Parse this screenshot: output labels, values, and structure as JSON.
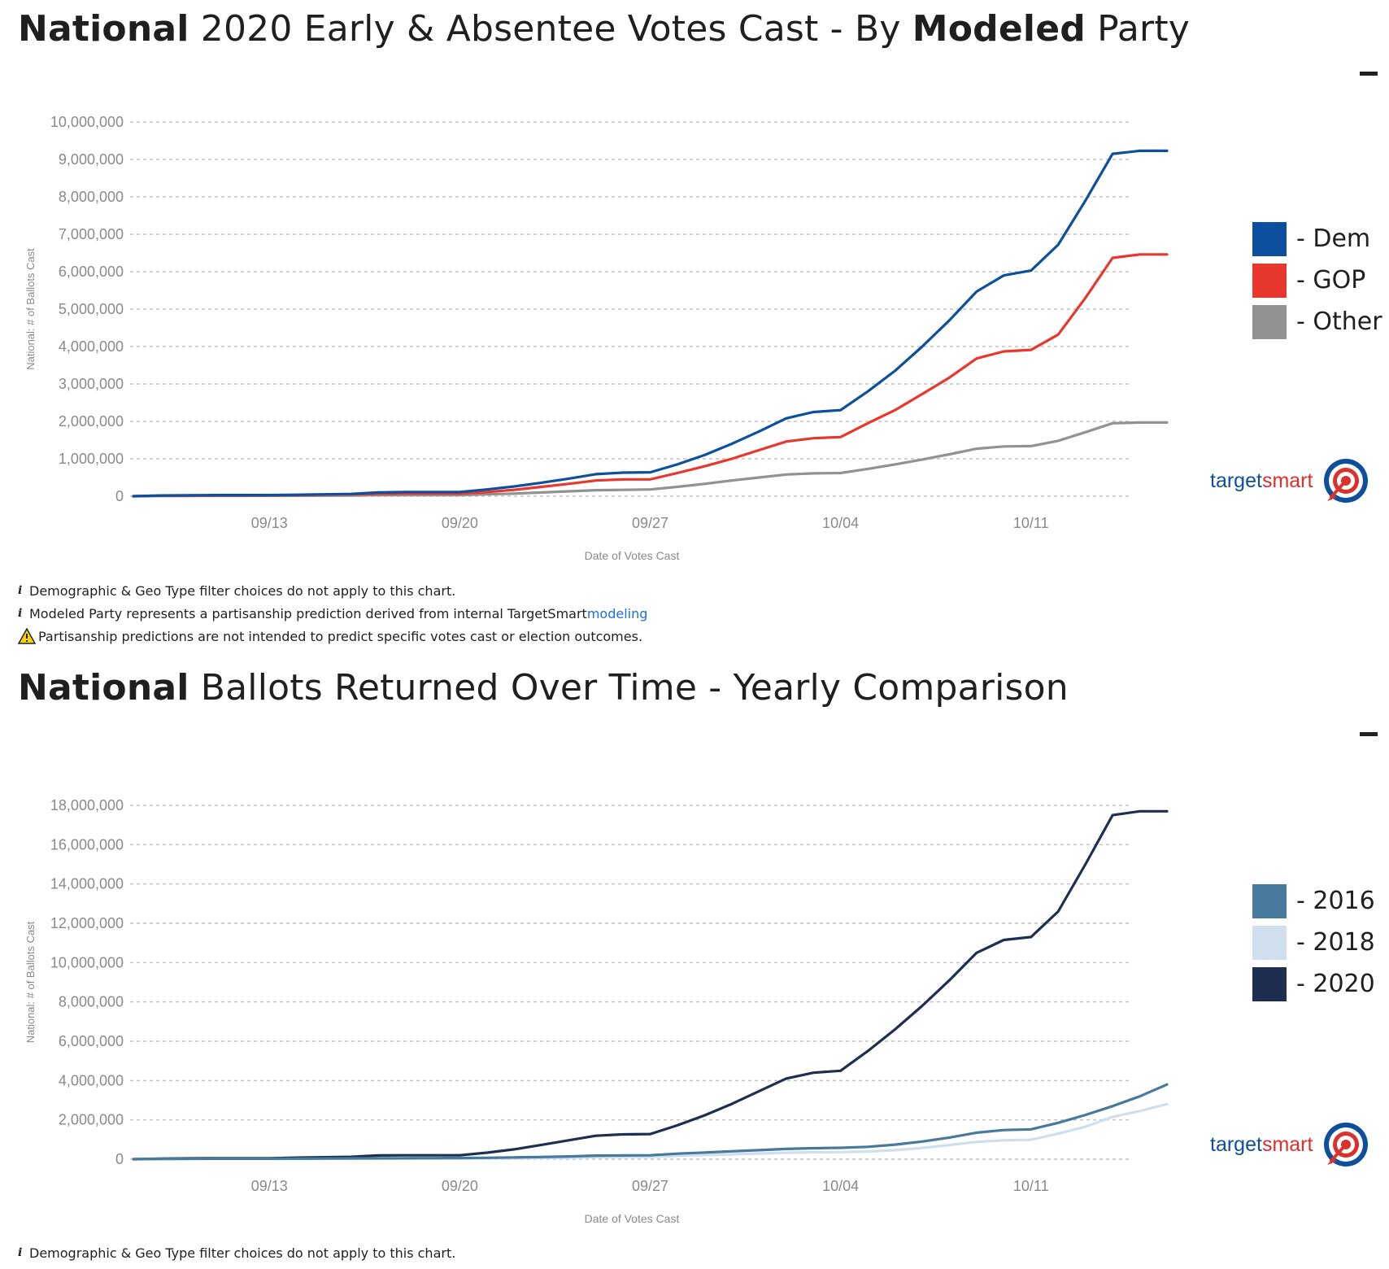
{
  "chart1": {
    "title_bold1": "National",
    "title_part2": " 2020 Early & Absentee Votes Cast - By ",
    "title_bold2": "Modeled",
    "title_part3": " Party",
    "notes": {
      "filter": "Demographic & Geo Type filter choices do not apply to this chart.",
      "modeled_prefix": "Modeled Party represents a partisanship prediction derived from internal TargetSmart ",
      "modeled_link": "modeling",
      "warning": "Partisanship predictions are not intended to predict specific votes cast or election outcomes."
    },
    "legend": [
      {
        "label": "- Dem",
        "color": "#0b4f9e"
      },
      {
        "label": "- GOP",
        "color": "#e8372c"
      },
      {
        "label": "- Other",
        "color": "#929292"
      }
    ]
  },
  "chart2": {
    "title_bold1": "National",
    "title_part2": " Ballots Returned Over Time - Yearly Comparison",
    "notes": {
      "filter": "Demographic & Geo Type filter choices do not apply to this chart."
    },
    "legend": [
      {
        "label": "- 2016",
        "color": "#46799b"
      },
      {
        "label": "- 2018",
        "color": "#cfdfee"
      },
      {
        "label": "- 2020",
        "color": "#1e2e50"
      }
    ]
  },
  "logo": {
    "part1": "target",
    "part2": "smart"
  },
  "icons": {
    "info": "info-icon",
    "warning": "warning-icon",
    "collapse": "minus-icon",
    "logo": "target-logo-icon"
  },
  "chart_data": [
    {
      "type": "line",
      "title": "National 2020 Early & Absentee Votes Cast - By Modeled Party",
      "xlabel": "Date of Votes Cast",
      "ylabel": "National: # of Ballots Cast",
      "x_days": [
        0,
        1,
        2,
        3,
        4,
        5,
        6,
        7,
        8,
        9,
        10,
        11,
        12,
        13,
        14,
        15,
        16,
        17,
        18,
        19,
        20,
        21,
        22,
        23,
        24,
        25,
        26,
        27,
        28,
        29,
        30,
        31,
        32,
        33,
        34,
        35,
        36,
        37,
        38
      ],
      "x_note": "day 0 = 09/08",
      "xticks": [
        {
          "day": 5,
          "label": "09/13"
        },
        {
          "day": 12,
          "label": "09/20"
        },
        {
          "day": 19,
          "label": "09/27"
        },
        {
          "day": 26,
          "label": "10/04"
        },
        {
          "day": 33,
          "label": "10/11"
        }
      ],
      "ylim": [
        0,
        10000000
      ],
      "yticks": [
        {
          "value": 0,
          "label": "0"
        },
        {
          "value": 1000000,
          "label": "1,000,000"
        },
        {
          "value": 2000000,
          "label": "2,000,000"
        },
        {
          "value": 3000000,
          "label": "3,000,000"
        },
        {
          "value": 4000000,
          "label": "4,000,000"
        },
        {
          "value": 5000000,
          "label": "5,000,000"
        },
        {
          "value": 6000000,
          "label": "6,000,000"
        },
        {
          "value": 7000000,
          "label": "7,000,000"
        },
        {
          "value": 8000000,
          "label": "8,000,000"
        },
        {
          "value": 9000000,
          "label": "9,000,000"
        },
        {
          "value": 10000000,
          "label": "10,000,000"
        }
      ],
      "series": [
        {
          "name": "Dem",
          "color": "#0b4f9e",
          "values": [
            0,
            20000,
            25000,
            30000,
            30000,
            30000,
            40000,
            50000,
            60000,
            100000,
            110000,
            110000,
            110000,
            180000,
            260000,
            360000,
            470000,
            590000,
            630000,
            640000,
            850000,
            1100000,
            1400000,
            1730000,
            2080000,
            2250000,
            2300000,
            2800000,
            3350000,
            4000000,
            4700000,
            5470000,
            5900000,
            6030000,
            6720000,
            7900000,
            9150000,
            9230000,
            9230000
          ]
        },
        {
          "name": "GOP",
          "color": "#e8372c",
          "values": [
            0,
            15000,
            20000,
            20000,
            20000,
            25000,
            30000,
            40000,
            50000,
            60000,
            70000,
            70000,
            70000,
            110000,
            170000,
            250000,
            330000,
            420000,
            450000,
            450000,
            620000,
            800000,
            1000000,
            1230000,
            1460000,
            1550000,
            1580000,
            1950000,
            2300000,
            2730000,
            3170000,
            3680000,
            3870000,
            3910000,
            4320000,
            5300000,
            6370000,
            6460000,
            6460000
          ]
        },
        {
          "name": "Other",
          "color": "#929292",
          "values": [
            0,
            5000,
            5000,
            10000,
            10000,
            10000,
            10000,
            15000,
            20000,
            30000,
            30000,
            30000,
            30000,
            50000,
            70000,
            100000,
            130000,
            160000,
            170000,
            180000,
            250000,
            330000,
            420000,
            500000,
            580000,
            610000,
            620000,
            730000,
            850000,
            980000,
            1120000,
            1270000,
            1330000,
            1340000,
            1480000,
            1710000,
            1950000,
            1970000,
            1970000
          ]
        }
      ]
    },
    {
      "type": "line",
      "title": "National Ballots Returned Over Time - Yearly Comparison",
      "xlabel": "Date of Votes Cast",
      "ylabel": "National: # of Ballots Cast",
      "x_days": [
        0,
        1,
        2,
        3,
        4,
        5,
        6,
        7,
        8,
        9,
        10,
        11,
        12,
        13,
        14,
        15,
        16,
        17,
        18,
        19,
        20,
        21,
        22,
        23,
        24,
        25,
        26,
        27,
        28,
        29,
        30,
        31,
        32,
        33,
        34,
        35,
        36,
        37,
        38
      ],
      "x_note": "day 0 = 09/08",
      "xticks": [
        {
          "day": 5,
          "label": "09/13"
        },
        {
          "day": 12,
          "label": "09/20"
        },
        {
          "day": 19,
          "label": "09/27"
        },
        {
          "day": 26,
          "label": "10/04"
        },
        {
          "day": 33,
          "label": "10/11"
        }
      ],
      "ylim": [
        0,
        18000000
      ],
      "yticks": [
        {
          "value": 0,
          "label": "0"
        },
        {
          "value": 2000000,
          "label": "2,000,000"
        },
        {
          "value": 4000000,
          "label": "4,000,000"
        },
        {
          "value": 6000000,
          "label": "6,000,000"
        },
        {
          "value": 8000000,
          "label": "8,000,000"
        },
        {
          "value": 10000000,
          "label": "10,000,000"
        },
        {
          "value": 12000000,
          "label": "12,000,000"
        },
        {
          "value": 14000000,
          "label": "14,000,000"
        },
        {
          "value": 16000000,
          "label": "16,000,000"
        },
        {
          "value": 18000000,
          "label": "18,000,000"
        }
      ],
      "series": [
        {
          "name": "2016",
          "color": "#46799b",
          "values": [
            0,
            15000,
            20000,
            25000,
            25000,
            25000,
            30000,
            35000,
            40000,
            45000,
            50000,
            55000,
            60000,
            70000,
            90000,
            110000,
            140000,
            180000,
            190000,
            200000,
            280000,
            340000,
            400000,
            460000,
            520000,
            560000,
            580000,
            630000,
            740000,
            900000,
            1100000,
            1350000,
            1480000,
            1520000,
            1850000,
            2250000,
            2700000,
            3200000,
            3800000
          ]
        },
        {
          "name": "2018",
          "color": "#cfdfee",
          "values": [
            0,
            5000,
            10000,
            10000,
            10000,
            10000,
            15000,
            20000,
            20000,
            25000,
            30000,
            30000,
            30000,
            40000,
            50000,
            60000,
            80000,
            100000,
            110000,
            120000,
            170000,
            210000,
            250000,
            290000,
            330000,
            350000,
            360000,
            390000,
            460000,
            570000,
            720000,
            880000,
            960000,
            990000,
            1300000,
            1650000,
            2150000,
            2450000,
            2800000
          ]
        },
        {
          "name": "2020",
          "color": "#1e2e50",
          "values": [
            0,
            30000,
            40000,
            50000,
            50000,
            50000,
            80000,
            100000,
            120000,
            190000,
            200000,
            200000,
            200000,
            330000,
            500000,
            730000,
            960000,
            1190000,
            1260000,
            1280000,
            1720000,
            2230000,
            2810000,
            3460000,
            4100000,
            4400000,
            4500000,
            5500000,
            6600000,
            7800000,
            9100000,
            10500000,
            11150000,
            11300000,
            12600000,
            15000000,
            17500000,
            17700000,
            17700000
          ]
        }
      ]
    }
  ]
}
